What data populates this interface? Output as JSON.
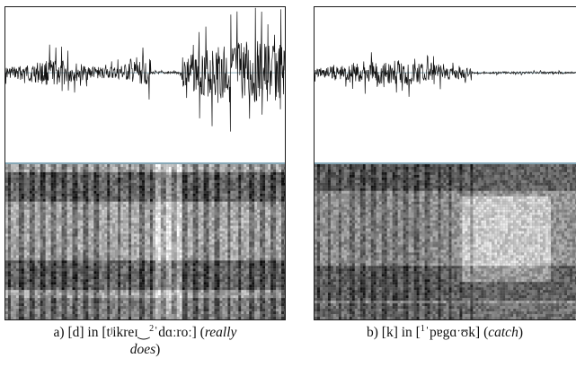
{
  "figures": [
    {
      "id": "a",
      "caption": {
        "prefix": "a) [d] in [tʲikreɪ",
        "tie": "‿",
        "tone": "2",
        "mid": "ˈdɑːroː] (",
        "gloss_line1": "really",
        "gloss_line2": "does",
        "suffix": ")"
      }
    },
    {
      "id": "b",
      "caption": {
        "prefix": "b) [k] in [",
        "tone": "1",
        "mid": "ˈpɐgɑˑʊk] (",
        "gloss": "catch",
        "suffix": ")"
      }
    }
  ]
}
